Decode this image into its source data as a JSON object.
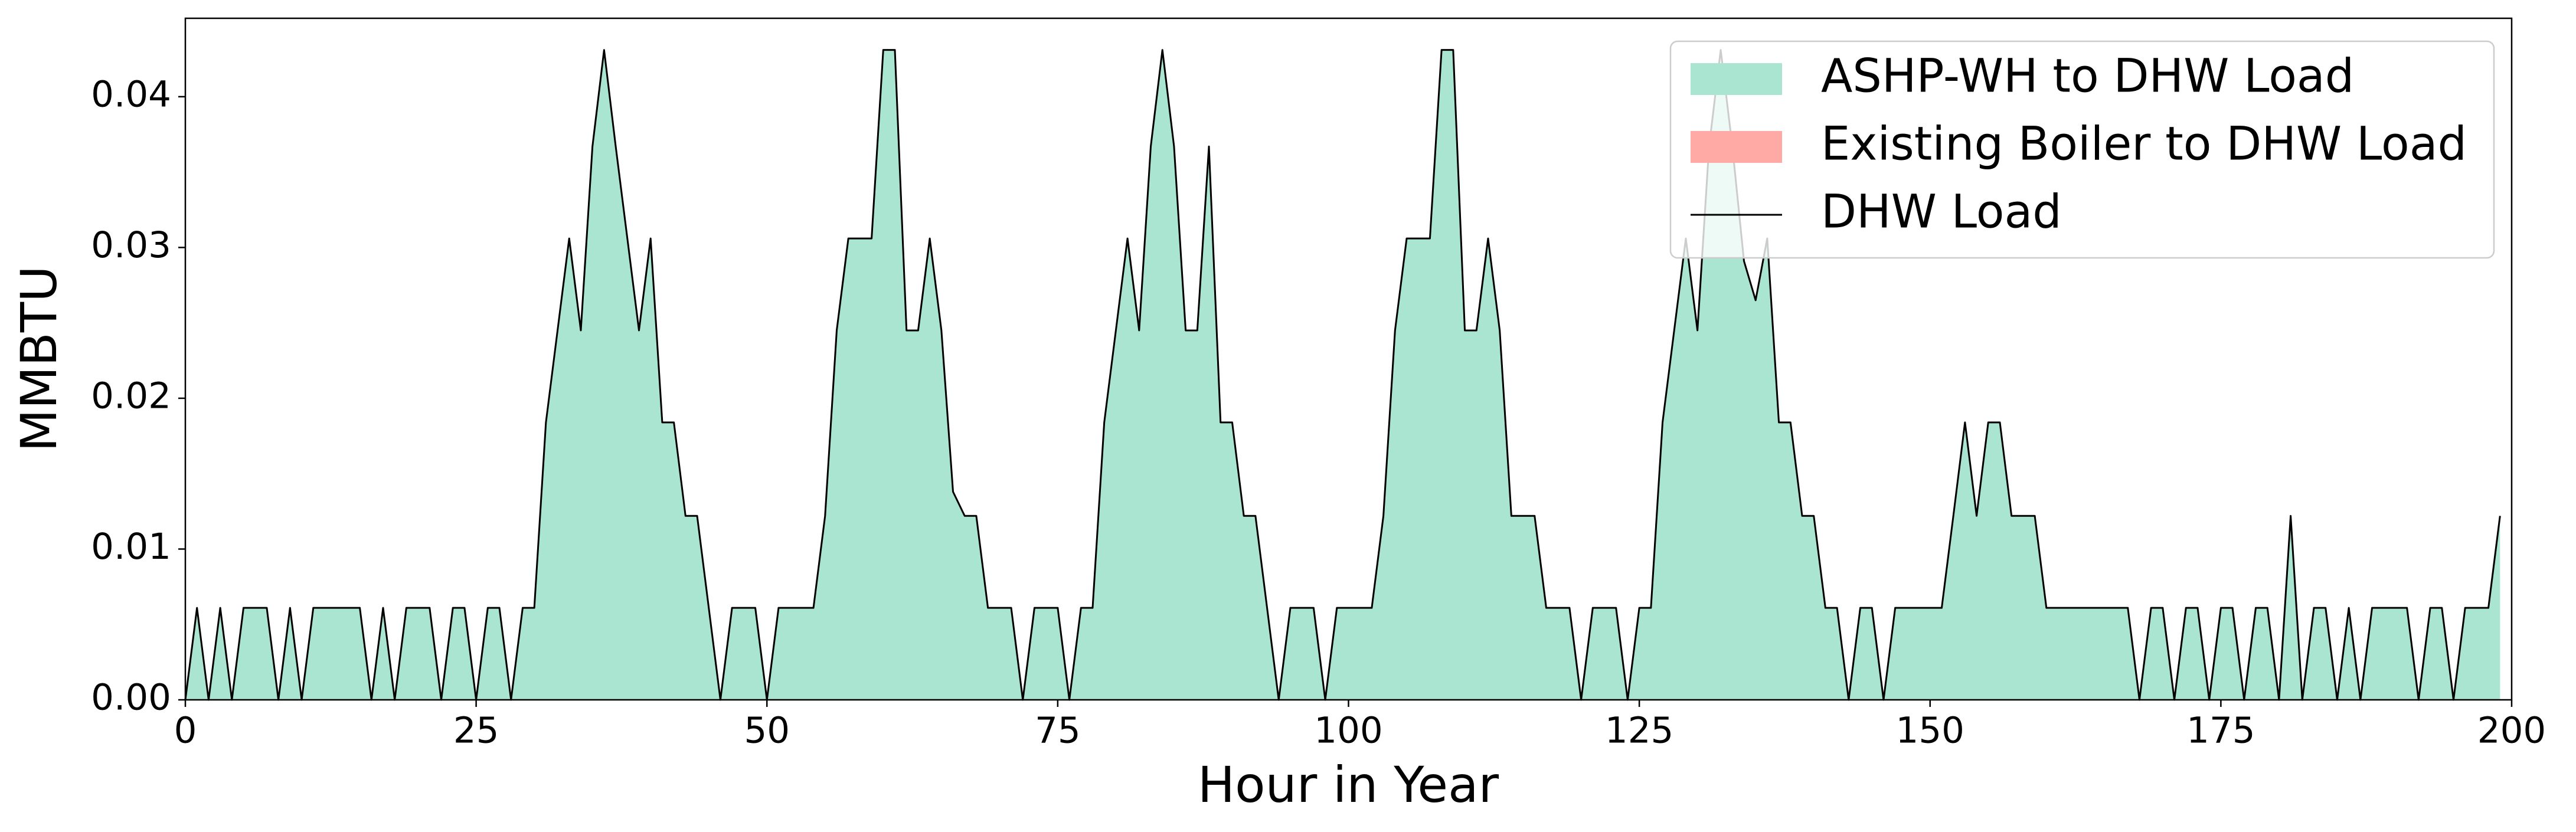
{
  "chart_data": {
    "type": "area",
    "xlabel": "Hour in Year",
    "ylabel": "MMBTU",
    "xlim": [
      0,
      200
    ],
    "ylim": [
      0,
      0.0452
    ],
    "xticks": [
      0,
      25,
      50,
      75,
      100,
      125,
      150,
      175,
      200
    ],
    "yticks": [
      {
        "value": 0,
        "label": "0.00"
      },
      {
        "value": 0.01,
        "label": "0.01"
      },
      {
        "value": 0.02,
        "label": "0.02"
      },
      {
        "value": 0.03,
        "label": "0.03"
      },
      {
        "value": 0.04,
        "label": "0.04"
      }
    ],
    "legend": "upper right",
    "x": [
      0,
      1,
      2,
      3,
      4,
      5,
      6,
      7,
      8,
      9,
      10,
      11,
      12,
      13,
      14,
      15,
      16,
      17,
      18,
      19,
      20,
      21,
      22,
      23,
      24,
      25,
      26,
      27,
      28,
      29,
      30,
      31,
      32,
      33,
      34,
      35,
      36,
      37,
      38,
      39,
      40,
      41,
      42,
      43,
      44,
      45,
      46,
      47,
      48,
      49,
      50,
      51,
      52,
      53,
      54,
      55,
      56,
      57,
      58,
      59,
      60,
      61,
      62,
      63,
      64,
      65,
      66,
      67,
      68,
      69,
      70,
      71,
      72,
      73,
      74,
      75,
      76,
      77,
      78,
      79,
      80,
      81,
      82,
      83,
      84,
      85,
      86,
      87,
      88,
      89,
      90,
      91,
      92,
      93,
      94,
      95,
      96,
      97,
      98,
      99,
      100,
      101,
      102,
      103,
      104,
      105,
      106,
      107,
      108,
      109,
      110,
      111,
      112,
      113,
      114,
      115,
      116,
      117,
      118,
      119,
      120,
      121,
      122,
      123,
      124,
      125,
      126,
      127,
      128,
      129,
      130,
      131,
      132,
      133,
      134,
      135,
      136,
      137,
      138,
      139,
      140,
      141,
      142,
      143,
      144,
      145,
      146,
      147,
      148,
      149,
      150,
      151,
      152,
      153,
      154,
      155,
      156,
      157,
      158,
      159,
      160,
      161,
      162,
      163,
      164,
      165,
      166,
      167,
      168,
      169,
      170,
      171,
      172,
      173,
      174,
      175,
      176,
      177,
      178,
      179,
      180,
      181,
      182,
      183,
      184,
      185,
      186,
      187,
      188,
      189,
      190,
      191,
      192,
      193,
      194,
      195,
      196,
      197,
      198,
      199
    ],
    "series": [
      {
        "name": "ASHP-WH to DHW Load",
        "type": "area",
        "color": "#a9e5d0",
        "values": [
          0,
          0.0061,
          0,
          0.0061,
          0,
          0.0061,
          0.0061,
          0.0061,
          0,
          0.0061,
          0,
          0.0061,
          0.0061,
          0.0061,
          0.0061,
          0.0061,
          0,
          0.0061,
          0,
          0.0061,
          0.0061,
          0.0061,
          0,
          0.0061,
          0.0061,
          0,
          0.0061,
          0.0061,
          0,
          0.0061,
          0.0061,
          0.0184,
          0.0245,
          0.0306,
          0.0245,
          0.0367,
          0.0431,
          0.0367,
          0.0306,
          0.0245,
          0.0306,
          0.0184,
          0.0184,
          0.0122,
          0.0122,
          0.0061,
          0,
          0.0061,
          0.0061,
          0.0061,
          0,
          0.0061,
          0.0061,
          0.0061,
          0.0061,
          0.0122,
          0.0245,
          0.0306,
          0.0306,
          0.0306,
          0.0431,
          0.0431,
          0.0245,
          0.0245,
          0.0306,
          0.0245,
          0.0138,
          0.0122,
          0.0122,
          0.0061,
          0.0061,
          0.0061,
          0,
          0.0061,
          0.0061,
          0.0061,
          0,
          0.0061,
          0.0061,
          0.0184,
          0.0245,
          0.0306,
          0.0245,
          0.0367,
          0.0431,
          0.0367,
          0.0245,
          0.0245,
          0.0367,
          0.0184,
          0.0184,
          0.0122,
          0.0122,
          0.0061,
          0,
          0.0061,
          0.0061,
          0.0061,
          0,
          0.0061,
          0.0061,
          0.0061,
          0.0061,
          0.0122,
          0.0245,
          0.0306,
          0.0306,
          0.0306,
          0.0431,
          0.0431,
          0.0245,
          0.0245,
          0.0306,
          0.0245,
          0.0122,
          0.0122,
          0.0122,
          0.0061,
          0.0061,
          0.0061,
          0,
          0.0061,
          0.0061,
          0.0061,
          0,
          0.0061,
          0.0061,
          0.0184,
          0.0245,
          0.0306,
          0.0245,
          0.0367,
          0.0431,
          0.0367,
          0.0291,
          0.0265,
          0.0306,
          0.0184,
          0.0184,
          0.0122,
          0.0122,
          0.0061,
          0.0061,
          0,
          0.0061,
          0.0061,
          0,
          0.0061,
          0.0061,
          0.0061,
          0.0061,
          0.0061,
          0.0122,
          0.0184,
          0.0122,
          0.0184,
          0.0184,
          0.0122,
          0.0122,
          0.0122,
          0.0061,
          0.0061,
          0.0061,
          0.0061,
          0.0061,
          0.0061,
          0.0061,
          0.0061,
          0,
          0.0061,
          0.0061,
          0,
          0.0061,
          0.0061,
          0,
          0.0061,
          0.0061,
          0,
          0.0061,
          0.0061,
          0,
          0.0122,
          0,
          0.0061,
          0.0061,
          0,
          0.0061,
          0,
          0.0061,
          0.0061,
          0.0061,
          0.0061,
          0,
          0.0061,
          0.0061,
          0,
          0.0061,
          0.0061,
          0.0061,
          0.0122
        ]
      },
      {
        "name": "Existing Boiler to DHW Load",
        "type": "area",
        "color": "#ffaaa5",
        "values": [
          0,
          0,
          0,
          0,
          0,
          0,
          0,
          0,
          0,
          0,
          0,
          0,
          0,
          0,
          0,
          0,
          0,
          0,
          0,
          0,
          0,
          0,
          0,
          0,
          0,
          0,
          0,
          0,
          0,
          0,
          0,
          0,
          0,
          0,
          0,
          0,
          0,
          0,
          0,
          0,
          0,
          0,
          0,
          0,
          0,
          0,
          0,
          0,
          0,
          0,
          0,
          0,
          0,
          0,
          0,
          0,
          0,
          0,
          0,
          0,
          0,
          0,
          0,
          0,
          0,
          0,
          0,
          0,
          0,
          0,
          0,
          0,
          0,
          0,
          0,
          0,
          0,
          0,
          0,
          0,
          0,
          0,
          0,
          0,
          0,
          0,
          0,
          0,
          0,
          0,
          0,
          0,
          0,
          0,
          0,
          0,
          0,
          0,
          0,
          0,
          0,
          0,
          0,
          0,
          0,
          0,
          0,
          0,
          0,
          0,
          0,
          0,
          0,
          0,
          0,
          0,
          0,
          0,
          0,
          0,
          0,
          0,
          0,
          0,
          0,
          0,
          0,
          0,
          0,
          0,
          0,
          0,
          0,
          0,
          0,
          0,
          0,
          0,
          0,
          0,
          0,
          0,
          0,
          0,
          0,
          0,
          0,
          0,
          0,
          0,
          0,
          0,
          0,
          0,
          0,
          0,
          0,
          0,
          0,
          0,
          0,
          0,
          0,
          0,
          0,
          0,
          0,
          0,
          0,
          0,
          0,
          0,
          0,
          0,
          0,
          0,
          0,
          0,
          0,
          0,
          0,
          0,
          0,
          0,
          0,
          0,
          0,
          0,
          0,
          0,
          0,
          0,
          0,
          0,
          0,
          0,
          0,
          0,
          0,
          0
        ]
      },
      {
        "name": "DHW Load",
        "type": "line",
        "color": "#000000",
        "values": [
          0,
          0.0061,
          0,
          0.0061,
          0,
          0.0061,
          0.0061,
          0.0061,
          0,
          0.0061,
          0,
          0.0061,
          0.0061,
          0.0061,
          0.0061,
          0.0061,
          0,
          0.0061,
          0,
          0.0061,
          0.0061,
          0.0061,
          0,
          0.0061,
          0.0061,
          0,
          0.0061,
          0.0061,
          0,
          0.0061,
          0.0061,
          0.0184,
          0.0245,
          0.0306,
          0.0245,
          0.0367,
          0.0431,
          0.0367,
          0.0306,
          0.0245,
          0.0306,
          0.0184,
          0.0184,
          0.0122,
          0.0122,
          0.0061,
          0,
          0.0061,
          0.0061,
          0.0061,
          0,
          0.0061,
          0.0061,
          0.0061,
          0.0061,
          0.0122,
          0.0245,
          0.0306,
          0.0306,
          0.0306,
          0.0431,
          0.0431,
          0.0245,
          0.0245,
          0.0306,
          0.0245,
          0.0138,
          0.0122,
          0.0122,
          0.0061,
          0.0061,
          0.0061,
          0,
          0.0061,
          0.0061,
          0.0061,
          0,
          0.0061,
          0.0061,
          0.0184,
          0.0245,
          0.0306,
          0.0245,
          0.0367,
          0.0431,
          0.0367,
          0.0245,
          0.0245,
          0.0367,
          0.0184,
          0.0184,
          0.0122,
          0.0122,
          0.0061,
          0,
          0.0061,
          0.0061,
          0.0061,
          0,
          0.0061,
          0.0061,
          0.0061,
          0.0061,
          0.0122,
          0.0245,
          0.0306,
          0.0306,
          0.0306,
          0.0431,
          0.0431,
          0.0245,
          0.0245,
          0.0306,
          0.0245,
          0.0122,
          0.0122,
          0.0122,
          0.0061,
          0.0061,
          0.0061,
          0,
          0.0061,
          0.0061,
          0.0061,
          0,
          0.0061,
          0.0061,
          0.0184,
          0.0245,
          0.0306,
          0.0245,
          0.0367,
          0.0431,
          0.0367,
          0.0291,
          0.0265,
          0.0306,
          0.0184,
          0.0184,
          0.0122,
          0.0122,
          0.0061,
          0.0061,
          0,
          0.0061,
          0.0061,
          0,
          0.0061,
          0.0061,
          0.0061,
          0.0061,
          0.0061,
          0.0122,
          0.0184,
          0.0122,
          0.0184,
          0.0184,
          0.0122,
          0.0122,
          0.0122,
          0.0061,
          0.0061,
          0.0061,
          0.0061,
          0.0061,
          0.0061,
          0.0061,
          0.0061,
          0,
          0.0061,
          0.0061,
          0,
          0.0061,
          0.0061,
          0,
          0.0061,
          0.0061,
          0,
          0.0061,
          0.0061,
          0,
          0.0122,
          0,
          0.0061,
          0.0061,
          0,
          0.0061,
          0,
          0.0061,
          0.0061,
          0.0061,
          0.0061,
          0,
          0.0061,
          0.0061,
          0,
          0.0061,
          0.0061,
          0.0061,
          0.0122
        ]
      }
    ]
  }
}
